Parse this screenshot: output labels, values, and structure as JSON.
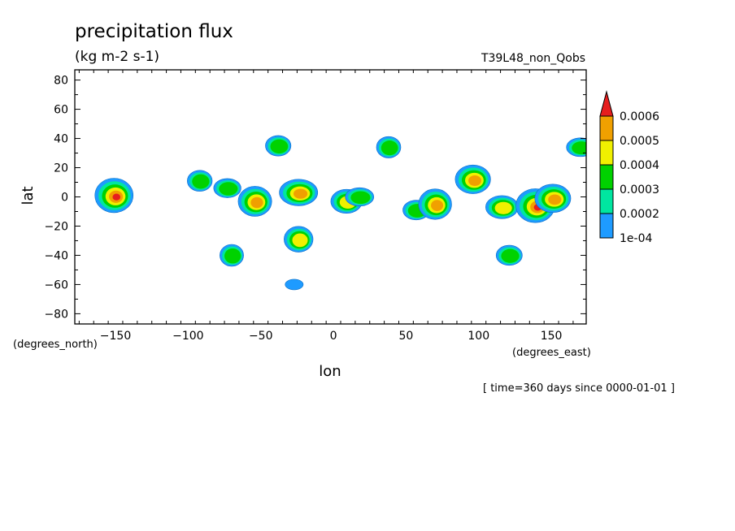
{
  "chart_data": {
    "type": "heatmap",
    "title": "precipitation flux",
    "units": "(kg m-2 s-1)",
    "run_label": "T39L48_non_Qobs",
    "xlabel": "lon",
    "ylabel": "lat",
    "x_units": "(degrees_east)",
    "y_units": "(degrees_north)",
    "time_label": "[ time=360 days since 0000-01-01 ]",
    "xlim": [
      -178,
      174
    ],
    "ylim": [
      -87,
      87
    ],
    "xticks": [
      -150,
      -100,
      -50,
      0,
      50,
      100,
      150
    ],
    "yticks": [
      80,
      60,
      40,
      20,
      0,
      -20,
      -40,
      -60,
      -80
    ],
    "colorbar": {
      "levels": [
        0.0001,
        0.0002,
        0.0003,
        0.0004,
        0.0005,
        0.0006
      ],
      "tick_labels": [
        "1e-04",
        "0.0002",
        "0.0003",
        "0.0004",
        "0.0005",
        "0.0006"
      ],
      "colors": [
        "#1e9bff",
        "#00e6a0",
        "#00d200",
        "#f0f000",
        "#f0a000",
        "#e61e1e"
      ]
    },
    "cells": [
      {
        "lon": -151,
        "lat": 1,
        "level": 5
      },
      {
        "lon": -92,
        "lat": 11,
        "level": 2
      },
      {
        "lon": -73,
        "lat": 6,
        "level": 2
      },
      {
        "lon": -54,
        "lat": -3,
        "level": 4
      },
      {
        "lon": -38,
        "lat": 35,
        "level": 2
      },
      {
        "lon": -24,
        "lat": 3,
        "level": 4
      },
      {
        "lon": -24,
        "lat": -29,
        "level": 3
      },
      {
        "lon": 9,
        "lat": -3,
        "level": 3
      },
      {
        "lon": 18,
        "lat": 0,
        "level": 2
      },
      {
        "lon": 38,
        "lat": 34,
        "level": 2
      },
      {
        "lon": 57,
        "lat": -9,
        "level": 2
      },
      {
        "lon": 70,
        "lat": -5,
        "level": 4
      },
      {
        "lon": 96,
        "lat": 12,
        "level": 4
      },
      {
        "lon": 116,
        "lat": -7,
        "level": 3
      },
      {
        "lon": 139,
        "lat": -6,
        "level": 5
      },
      {
        "lon": 151,
        "lat": -1,
        "level": 4
      },
      {
        "lon": 170,
        "lat": 34,
        "level": 2
      },
      {
        "lon": -70,
        "lat": -40,
        "level": 2
      },
      {
        "lon": 121,
        "lat": -40,
        "level": 2
      },
      {
        "lon": -27,
        "lat": -60,
        "level": 0
      }
    ]
  }
}
